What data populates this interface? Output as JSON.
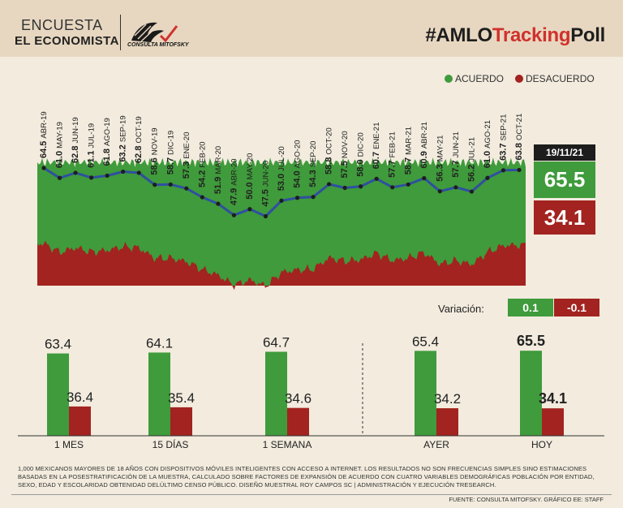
{
  "header": {
    "encuesta_label": "ENCUESTA",
    "publisher": "EL ECONOMISTA",
    "logo_text": "CONSULTA MITOFSKY",
    "hashtag_prefix": "#AMLO",
    "hashtag_highlight": "Tracking",
    "hashtag_suffix": "Poll"
  },
  "legend": {
    "acuerdo_label": "ACUERDO",
    "desacuerdo_label": "DESACUERDO"
  },
  "current": {
    "date": "19/11/21",
    "acuerdo": "65.5",
    "desacuerdo": "34.1"
  },
  "variacion": {
    "label": "Variación:",
    "acuerdo": "0.1",
    "desacuerdo": "-0.1"
  },
  "colors": {
    "green": "#3f9b3b",
    "red": "#a2231f",
    "line": "#2f4fa0",
    "background": "#f2ebde"
  },
  "chart_data": [
    {
      "type": "area",
      "title": "#AMLOTrackingPoll",
      "series": [
        {
          "name": "ACUERDO",
          "values": [
            64.5,
            61.0,
            62.8,
            61.1,
            61.8,
            63.2,
            62.8,
            58.6,
            58.7,
            57.3,
            54.2,
            51.9,
            47.9,
            50.0,
            47.5,
            53.0,
            54.0,
            54.3,
            58.8,
            57.5,
            58.0,
            60.7,
            57.7,
            58.7,
            60.9,
            56.3,
            57.7,
            56.2,
            61.0,
            63.7,
            63.8
          ]
        }
      ],
      "categories": [
        "ABR-19",
        "MAY-19",
        "JUN-19",
        "JUL-19",
        "AGO-19",
        "SEP-19",
        "OCT-19",
        "NOV-19",
        "DIC-19",
        "ENE-20",
        "FEB-20",
        "MAR-20",
        "ABR-20",
        "MAY-20",
        "JUN-20",
        "JUL-20",
        "AGO-20",
        "SEP-20",
        "OCT-20",
        "NOV-20",
        "DIC-20",
        "ENE-21",
        "FEB-21",
        "MAR-21",
        "ABR-21",
        "MAY-21",
        "JUN-21",
        "JUL-21",
        "AGO-21",
        "SEP-21",
        "OCT-21"
      ],
      "labels": [
        "64.5",
        "61.0",
        "62.8",
        "61.1",
        "61.8",
        "63.2",
        "62.8",
        "58.6",
        "58.7",
        "57.3",
        "54.2",
        "51.9",
        "47.9",
        "50.0",
        "47.5",
        "53.0",
        "54.0",
        "54.3",
        "58.8",
        "57.5",
        "58.0",
        "60.7",
        "57.7",
        "58.7",
        "60.9",
        "56.3",
        "57.7",
        "56.2",
        "61.0",
        "63.7",
        "63.8"
      ],
      "ylim": [
        0,
        100
      ]
    },
    {
      "type": "bar",
      "categories": [
        "1 MES",
        "15 DÍAS",
        "1 SEMANA",
        "AYER",
        "HOY"
      ],
      "series": [
        {
          "name": "ACUERDO",
          "values": [
            63.4,
            64.1,
            64.7,
            65.4,
            65.5
          ]
        },
        {
          "name": "DESACUERDO",
          "values": [
            36.4,
            35.4,
            34.6,
            34.2,
            34.1
          ]
        }
      ],
      "acuerdo_labels": [
        "63.4",
        "64.1",
        "64.7",
        "65.4",
        "65.5"
      ],
      "desacuerdo_labels": [
        "36.4",
        "35.4",
        "34.6",
        "34.2",
        "34.1"
      ],
      "ylim": [
        0,
        100
      ]
    }
  ],
  "footer": {
    "note": "1,000 MEXICANOS MAYORES DE 18 AÑOS CON DISPOSITIVOS MÓVILES INTELIGENTES CON ACCESO A INTERNET. LOS RESULTADOS NO SON FRECUENCIAS SIMPLES SINO ESTIMACIONES BASADAS EN LA POSESTRATIFICACIÓN DE LA MUESTRA, CALCULADO SOBRE FACTORES DE EXPANSIÓN DE ACUERDO CON CUATRO VARIABLES DEMOGRÁFICAS POBLACIÓN POR ENTIDAD, SEXO, EDAD Y ESCOLARIDAD OBTENIDAD DELÚLTIMO CENSO PÚBLICO. DISEÑO MUESTRAL ROY CAMPOS SC | ADMINISTRACIÓN Y EJECUCIÓN TRESEARCH.",
    "source": "FUENTE: CONSULTA MITOFSKY. GRÁFICO EE: STAFF"
  }
}
